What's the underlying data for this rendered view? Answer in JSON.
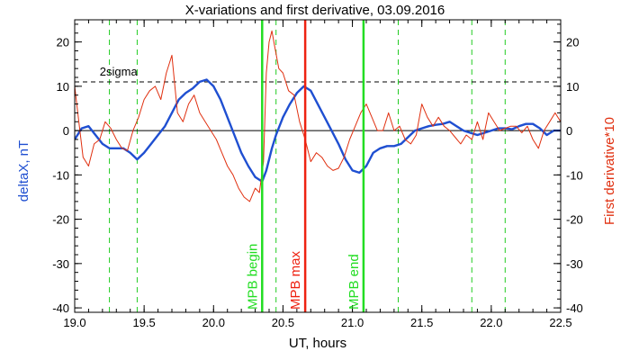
{
  "chart_data": {
    "type": "line",
    "title": "X-variations and first derivative, 03.09.2016",
    "xlabel": "UT, hours",
    "ylabel_left": "deltaX, nT",
    "ylabel_right": "First derivative*10",
    "xlim": [
      19.0,
      22.5
    ],
    "ylim": [
      -41,
      25
    ],
    "xticks": [
      19.0,
      19.5,
      20.0,
      20.5,
      21.0,
      21.5,
      22.0,
      22.5
    ],
    "xtick_labels": [
      "19.0",
      "19.5",
      "20.0",
      "20.5",
      "21.0",
      "21.5",
      "22.0",
      "22.5"
    ],
    "yticks": [
      20,
      10,
      0,
      -10,
      -20,
      -30,
      -40
    ],
    "ytick_labels": [
      "20",
      "10",
      "0",
      "-10",
      "-20",
      "-30",
      "-40"
    ],
    "colors": {
      "deltaX": "#1f4fd1",
      "derivative": "#e03010",
      "mpb_boundary": "#22dd22",
      "mpb_max": "#ee2211",
      "dashed_green": "#22cc22",
      "reference": "#000000"
    },
    "threshold": {
      "label": "2sigma",
      "value": 11
    },
    "zero_line": 0,
    "vertical_markers": [
      {
        "label": "MPB begin",
        "x": 20.35,
        "kind": "begin"
      },
      {
        "label": "MPB max",
        "x": 20.66,
        "kind": "max"
      },
      {
        "label": "MPB end",
        "x": 21.08,
        "kind": "end"
      }
    ],
    "dashed_verticals": [
      19.25,
      19.45,
      20.45,
      21.33,
      21.86,
      22.1
    ],
    "series": [
      {
        "key": "deltaX",
        "x": [
          19.0,
          19.05,
          19.1,
          19.15,
          19.2,
          19.25,
          19.3,
          19.35,
          19.4,
          19.45,
          19.5,
          19.55,
          19.6,
          19.65,
          19.7,
          19.75,
          19.8,
          19.85,
          19.9,
          19.95,
          20.0,
          20.05,
          20.1,
          20.15,
          20.2,
          20.25,
          20.3,
          20.35,
          20.38,
          20.42,
          20.45,
          20.5,
          20.55,
          20.6,
          20.65,
          20.7,
          20.75,
          20.8,
          20.85,
          20.9,
          20.95,
          21.0,
          21.05,
          21.1,
          21.15,
          21.2,
          21.25,
          21.3,
          21.35,
          21.4,
          21.45,
          21.5,
          21.55,
          21.6,
          21.65,
          21.7,
          21.75,
          21.8,
          21.85,
          21.9,
          21.95,
          22.0,
          22.05,
          22.1,
          22.15,
          22.2,
          22.25,
          22.3,
          22.35,
          22.4,
          22.45,
          22.5
        ],
        "y": [
          -2,
          0.5,
          1,
          -1,
          -3,
          -4,
          -4,
          -4,
          -5,
          -6.5,
          -5,
          -3,
          -1,
          1,
          4,
          7,
          8.5,
          9.5,
          11,
          11.5,
          10,
          7,
          3,
          -1,
          -5,
          -8,
          -10.5,
          -11.5,
          -9,
          -4,
          -1,
          3,
          6,
          8.5,
          10,
          9,
          6,
          3,
          0,
          -3,
          -6.5,
          -9,
          -9.5,
          -8,
          -5,
          -4,
          -3.5,
          -3.5,
          -3,
          -1.5,
          0,
          0.5,
          1,
          1.3,
          1.5,
          2,
          1,
          0,
          -0.5,
          -1,
          -0.5,
          0,
          0.5,
          0.5,
          0.3,
          1,
          1.5,
          1.5,
          0.5,
          -1,
          0,
          0
        ]
      },
      {
        "key": "derivative",
        "x": [
          19.0,
          19.03,
          19.06,
          19.1,
          19.14,
          19.18,
          19.22,
          19.26,
          19.3,
          19.34,
          19.38,
          19.42,
          19.46,
          19.5,
          19.54,
          19.58,
          19.62,
          19.66,
          19.7,
          19.74,
          19.78,
          19.82,
          19.86,
          19.9,
          19.94,
          19.98,
          20.02,
          20.06,
          20.1,
          20.14,
          20.18,
          20.22,
          20.26,
          20.3,
          20.33,
          20.36,
          20.38,
          20.4,
          20.42,
          20.44,
          20.47,
          20.5,
          20.54,
          20.58,
          20.62,
          20.66,
          20.7,
          20.74,
          20.78,
          20.82,
          20.86,
          20.9,
          20.94,
          20.98,
          21.02,
          21.06,
          21.1,
          21.14,
          21.18,
          21.22,
          21.26,
          21.3,
          21.34,
          21.38,
          21.42,
          21.46,
          21.5,
          21.54,
          21.58,
          21.62,
          21.66,
          21.7,
          21.74,
          21.78,
          21.82,
          21.86,
          21.9,
          21.94,
          21.98,
          22.02,
          22.06,
          22.1,
          22.14,
          22.18,
          22.22,
          22.26,
          22.3,
          22.34,
          22.38,
          22.42,
          22.46,
          22.5
        ],
        "y": [
          10,
          2,
          -6,
          -8,
          -3,
          -2,
          2,
          0.5,
          -2,
          -4,
          -4.5,
          0,
          3,
          7,
          9,
          10,
          7,
          13,
          17,
          4,
          2,
          6,
          8,
          4,
          2,
          0,
          -2,
          -5,
          -8,
          -10,
          -13,
          -15,
          -16,
          -13,
          -14,
          -7,
          13,
          20,
          22.5,
          19,
          14,
          13,
          9,
          8,
          2,
          -2,
          -7,
          -5,
          -6,
          -8,
          -9,
          -8.5,
          -6,
          -2,
          1,
          4,
          6,
          3,
          0,
          0,
          4,
          0,
          1,
          -2,
          -3,
          -1,
          6,
          3,
          1,
          3,
          1,
          0,
          -1.5,
          -3,
          -1,
          -2,
          2,
          -2,
          4,
          2,
          0,
          0.5,
          1,
          1,
          -0.5,
          1,
          -2,
          -4,
          0,
          2,
          4,
          2
        ]
      }
    ]
  }
}
